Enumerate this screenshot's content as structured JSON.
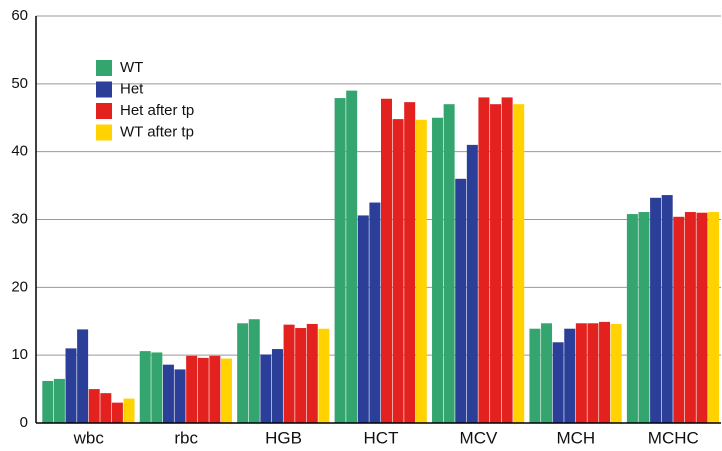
{
  "chart_data": {
    "type": "bar",
    "categories": [
      "wbc",
      "rbc",
      "HGB",
      "HCT",
      "MCV",
      "MCH",
      "MCHC"
    ],
    "series": [
      {
        "name": "WT",
        "color": "#35a56f",
        "values": [
          [
            6.2,
            6.5
          ],
          [
            10.6,
            10.4
          ],
          [
            14.7,
            15.3
          ],
          [
            47.9,
            49
          ],
          [
            45,
            47
          ],
          [
            13.9,
            14.7
          ],
          [
            30.8,
            31.1
          ]
        ]
      },
      {
        "name": "Het",
        "color": "#2b3f98",
        "values": [
          [
            11,
            13.8
          ],
          [
            8.6,
            7.9
          ],
          [
            10.1,
            10.9
          ],
          [
            30.6,
            32.5
          ],
          [
            36,
            41
          ],
          [
            11.9,
            13.9
          ],
          [
            33.2,
            33.6
          ]
        ]
      },
      {
        "name": "Het after tp",
        "color": "#e3211f",
        "values": [
          [
            5,
            4.4,
            3
          ],
          [
            9.9,
            9.6,
            9.9
          ],
          [
            14.5,
            14,
            14.6
          ],
          [
            47.8,
            44.8,
            47.3
          ],
          [
            48,
            47,
            48
          ],
          [
            14.7,
            14.7,
            14.9
          ],
          [
            30.4,
            31.1,
            31
          ]
        ]
      },
      {
        "name": "WT after tp",
        "color": "#ffd200",
        "values": [
          [
            3.6
          ],
          [
            9.5
          ],
          [
            13.9
          ],
          [
            44.7
          ],
          [
            47
          ],
          [
            14.6
          ],
          [
            31.1
          ]
        ]
      }
    ],
    "ylim": [
      0,
      60
    ],
    "yticks": [
      0,
      10,
      20,
      30,
      40,
      50,
      60
    ],
    "grid": true,
    "legend": "upper left"
  }
}
